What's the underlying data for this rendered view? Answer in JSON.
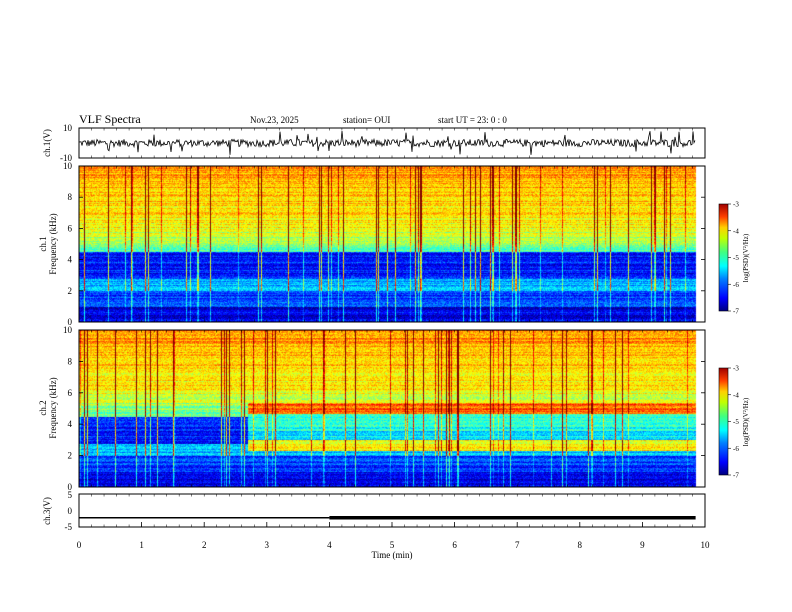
{
  "header": {
    "title": "VLF Spectra",
    "date": "Nov.23, 2025",
    "station": "station= OUI",
    "start": "start  UT =   23: 0  : 0"
  },
  "chart_data": [
    {
      "type": "line",
      "ylabel": "ch.1(V)",
      "ylim": [
        -10,
        10
      ],
      "yticks": [
        "10",
        "-10"
      ],
      "description_values": {
        "baseline": 0,
        "noise_amplitude_approx": 2.5
      }
    },
    {
      "type": "heatmap",
      "ylabel": "ch.1\nFrequency (kHz)",
      "ylabel_line1": "ch.1",
      "ylabel_line2": "Frequency (kHz)",
      "ylim": [
        0,
        10
      ],
      "yticks": [
        "0",
        "2",
        "4",
        "6",
        "8",
        "10"
      ],
      "colorbar": {
        "label": "log(PSD)(V²/Hz)",
        "range": [
          -7,
          -3
        ],
        "ticks": [
          "-3",
          "-4",
          "-5",
          "-6",
          "-7"
        ]
      }
    },
    {
      "type": "heatmap",
      "ylabel_line1": "ch.2",
      "ylabel_line2": "Frequency (kHz)",
      "ylim": [
        0,
        10
      ],
      "yticks": [
        "0",
        "2",
        "4",
        "6",
        "8",
        "10"
      ],
      "change_time_min": 2.7,
      "band_khz": [
        4.8,
        5.3
      ],
      "colorbar": {
        "label": "log(PSD)(V²/Hz)",
        "range": [
          -7,
          -3
        ],
        "ticks": [
          "-3",
          "-4",
          "-5",
          "-6",
          "-7"
        ]
      }
    },
    {
      "type": "line",
      "ylabel": "ch.3(V)",
      "ylim": [
        -5,
        5
      ],
      "yticks": [
        "5",
        "0",
        "-5"
      ],
      "x": [
        0,
        4.0,
        4.0,
        9.85
      ],
      "y": [
        -2.2,
        -2.2,
        -2.2,
        -2.2
      ],
      "xlabel": "Time  (min)",
      "xlim": [
        0,
        10
      ],
      "xticks": [
        "0",
        "1",
        "2",
        "3",
        "4",
        "5",
        "6",
        "7",
        "8",
        "9",
        "10"
      ]
    }
  ],
  "colors": {
    "scale": [
      "#00007f",
      "#0000ff",
      "#007fff",
      "#00ffff",
      "#7fff7f",
      "#ffff00",
      "#ff7f00",
      "#ff0000",
      "#7f0000"
    ]
  }
}
